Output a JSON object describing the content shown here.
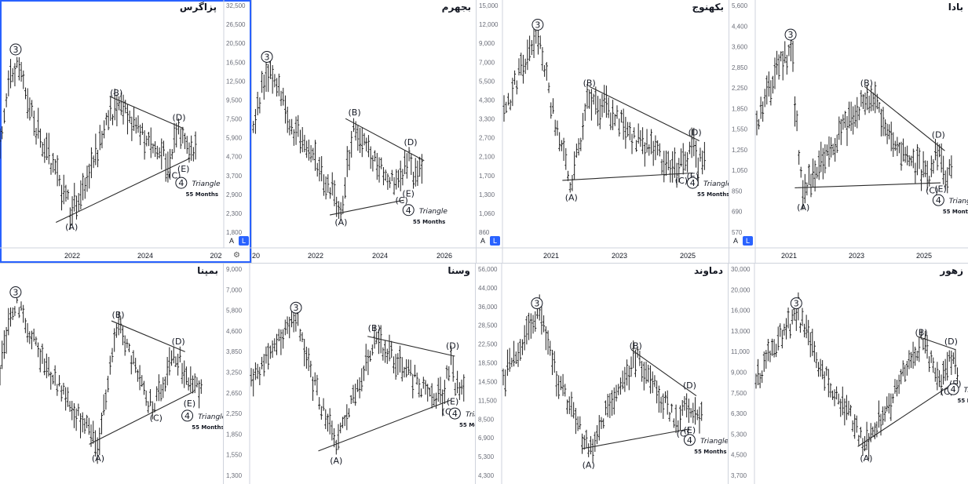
{
  "colors": {
    "ink": "#131722",
    "line": "#2b2b2b",
    "accent": "#2962ff",
    "axis": "#6a6d78"
  },
  "panels": [
    {
      "symbol": "پزاگرس",
      "active": true,
      "y_ticks": [
        "32,500",
        "26,500",
        "20,500",
        "16,500",
        "12,500",
        "9,500",
        "7,500",
        "5,900",
        "4,700",
        "3,700",
        "2,900",
        "2,300",
        "1,800"
      ],
      "x_ticks": [
        "2022",
        "2024",
        "202"
      ],
      "show_scale_btns": true
    },
    {
      "symbol": "بجهرم",
      "active": false,
      "y_ticks": [],
      "x_ticks": [
        "20",
        "2022",
        "2024",
        "2026"
      ],
      "show_scale_btns": false
    },
    {
      "symbol": "بکهنوج",
      "active": false,
      "y_ticks": [
        "15,000",
        "12,000",
        "9,000",
        "7,000",
        "5,500",
        "4,300",
        "3,300",
        "2,700",
        "2,100",
        "1,700",
        "1,300",
        "1,060",
        "860"
      ],
      "x_ticks": [
        "2021",
        "2023",
        "2025"
      ],
      "show_scale_btns": true
    },
    {
      "symbol": "بادا",
      "active": false,
      "y_ticks": [
        "5,600",
        "4,400",
        "3,600",
        "2,850",
        "2,250",
        "1,850",
        "1,550",
        "1,250",
        "1,050",
        "850",
        "690",
        "570"
      ],
      "x_ticks": [
        "2021",
        "2023",
        "2025"
      ],
      "show_scale_btns": true
    },
    {
      "symbol": "بمپنا",
      "active": false,
      "y_ticks": [],
      "x_ticks": [],
      "show_scale_btns": false
    },
    {
      "symbol": "وسنا",
      "active": false,
      "y_ticks": [
        "9,000",
        "7,000",
        "5,800",
        "4,600",
        "3,850",
        "3,250",
        "2,650",
        "2,250",
        "1,850",
        "1,550",
        "1,300"
      ],
      "x_ticks": [],
      "show_scale_btns": false
    },
    {
      "symbol": "دماوند",
      "active": false,
      "y_ticks": [
        "56,000",
        "44,000",
        "36,000",
        "28,500",
        "22,500",
        "18,500",
        "14,500",
        "11,500",
        "8,500",
        "6,900",
        "5,300",
        "4,300"
      ],
      "x_ticks": [],
      "show_scale_btns": false
    },
    {
      "symbol": "زهور",
      "active": false,
      "y_ticks": [
        "30,000",
        "20,000",
        "16,000",
        "13,000",
        "11,000",
        "9,000",
        "7,500",
        "6,300",
        "5,300",
        "4,500",
        "3,700"
      ],
      "x_ticks": [],
      "show_scale_btns": false
    }
  ],
  "waves": {
    "w3": "3",
    "A": "(A)",
    "B": "(B)",
    "C": "(C)",
    "D": "(D)",
    "E": "(E)",
    "w4": "4",
    "pattern": "Triangle",
    "duration": "55 Months"
  },
  "scale_btns": {
    "auto": "A",
    "log": "L"
  }
}
